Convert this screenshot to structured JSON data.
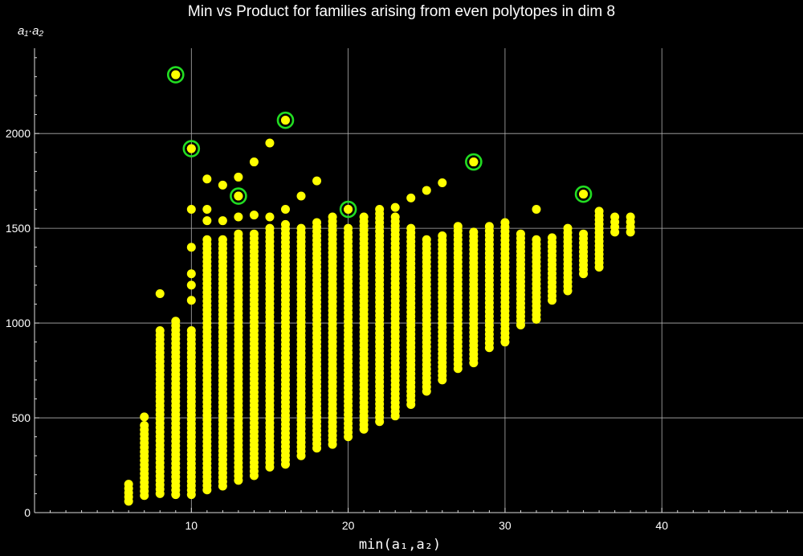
{
  "chart_data": {
    "type": "scatter",
    "title": "Min vs Product for families arising from even polytopes in dim 8",
    "xlabel": "min(a₁,a₂)",
    "ylabel": "a₁·a₂",
    "xlim": [
      0,
      49
    ],
    "ylim": [
      0,
      2450
    ],
    "x_ticks": [
      "10",
      "20",
      "30",
      "40"
    ],
    "y_ticks": [
      "0",
      "500",
      "1000",
      "1500",
      "2000"
    ],
    "grid": true,
    "colors": {
      "points": "#ffff00",
      "highlight_ring": "#22dd22",
      "grid": "#b0b0b0",
      "background": "#000000"
    },
    "columns": [
      {
        "x": 6,
        "ymin": 60,
        "ymax": 150,
        "extra": []
      },
      {
        "x": 7,
        "ymin": 90,
        "ymax": 460,
        "extra": [
          505
        ]
      },
      {
        "x": 8,
        "ymin": 100,
        "ymax": 960,
        "extra": [
          1155
        ]
      },
      {
        "x": 9,
        "ymin": 95,
        "ymax": 1010,
        "extra": [
          2310
        ]
      },
      {
        "x": 10,
        "ymin": 95,
        "ymax": 960,
        "extra": [
          1120,
          1200,
          1260,
          1400,
          1600,
          1920
        ]
      },
      {
        "x": 11,
        "ymin": 120,
        "ymax": 1440,
        "extra": [
          1540,
          1600,
          1760
        ]
      },
      {
        "x": 12,
        "ymin": 140,
        "ymax": 1440,
        "extra": [
          1540,
          1728
        ]
      },
      {
        "x": 13,
        "ymin": 170,
        "ymax": 1470,
        "extra": [
          1560,
          1670,
          1770
        ]
      },
      {
        "x": 14,
        "ymin": 195,
        "ymax": 1470,
        "extra": [
          1570,
          1850
        ]
      },
      {
        "x": 15,
        "ymin": 240,
        "ymax": 1500,
        "extra": [
          1560,
          1950
        ]
      },
      {
        "x": 16,
        "ymin": 255,
        "ymax": 1520,
        "extra": [
          1600,
          2070
        ]
      },
      {
        "x": 17,
        "ymin": 300,
        "ymax": 1500,
        "extra": [
          1670
        ]
      },
      {
        "x": 18,
        "ymin": 340,
        "ymax": 1530,
        "extra": [
          1750
        ]
      },
      {
        "x": 19,
        "ymin": 360,
        "ymax": 1560,
        "extra": []
      },
      {
        "x": 20,
        "ymin": 400,
        "ymax": 1500,
        "extra": [
          1600
        ]
      },
      {
        "x": 21,
        "ymin": 440,
        "ymax": 1560,
        "extra": []
      },
      {
        "x": 22,
        "ymin": 480,
        "ymax": 1600,
        "extra": []
      },
      {
        "x": 23,
        "ymin": 510,
        "ymax": 1560,
        "extra": [
          1610
        ]
      },
      {
        "x": 24,
        "ymin": 570,
        "ymax": 1500,
        "extra": [
          1660
        ]
      },
      {
        "x": 25,
        "ymin": 640,
        "ymax": 1440,
        "extra": [
          1700
        ]
      },
      {
        "x": 26,
        "ymin": 700,
        "ymax": 1460,
        "extra": [
          1740
        ]
      },
      {
        "x": 27,
        "ymin": 760,
        "ymax": 1510,
        "extra": []
      },
      {
        "x": 28,
        "ymin": 790,
        "ymax": 1480,
        "extra": [
          1850
        ]
      },
      {
        "x": 29,
        "ymin": 870,
        "ymax": 1510,
        "extra": []
      },
      {
        "x": 30,
        "ymin": 900,
        "ymax": 1530,
        "extra": []
      },
      {
        "x": 31,
        "ymin": 990,
        "ymax": 1470,
        "extra": []
      },
      {
        "x": 32,
        "ymin": 1020,
        "ymax": 1440,
        "extra": [
          1600
        ]
      },
      {
        "x": 33,
        "ymin": 1120,
        "ymax": 1450,
        "extra": []
      },
      {
        "x": 34,
        "ymin": 1170,
        "ymax": 1500,
        "extra": []
      },
      {
        "x": 35,
        "ymin": 1260,
        "ymax": 1470,
        "extra": [
          1680
        ]
      },
      {
        "x": 36,
        "ymin": 1295,
        "ymax": 1590,
        "extra": []
      },
      {
        "x": 37,
        "ymin": 1480,
        "ymax": 1560,
        "extra": []
      },
      {
        "x": 38,
        "ymin": 1480,
        "ymax": 1560,
        "extra": []
      }
    ],
    "highlighted": [
      {
        "x": 9,
        "y": 2310
      },
      {
        "x": 10,
        "y": 1920
      },
      {
        "x": 13,
        "y": 1670
      },
      {
        "x": 16,
        "y": 2070
      },
      {
        "x": 20,
        "y": 1600
      },
      {
        "x": 28,
        "y": 1850
      },
      {
        "x": 35,
        "y": 1680
      }
    ]
  }
}
